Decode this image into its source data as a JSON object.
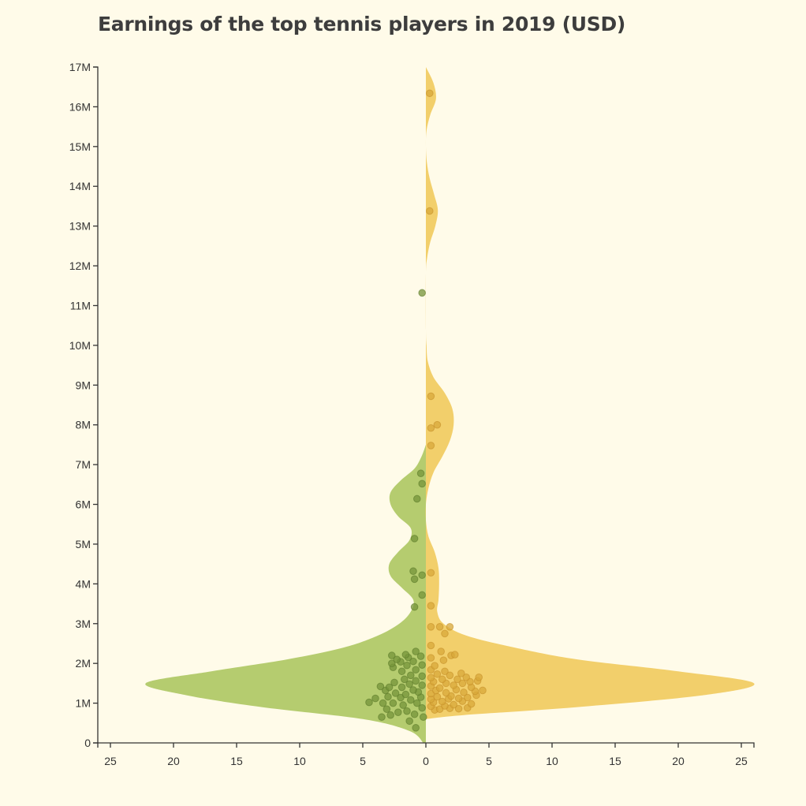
{
  "chart_data": {
    "type": "violin",
    "title": "Earnings of the top tennis players in 2019 (USD)",
    "xlabel": "",
    "ylabel": "",
    "ylim": [
      0,
      17000000
    ],
    "xlim": [
      -26,
      26
    ],
    "y_ticks": [
      0,
      1000000,
      2000000,
      3000000,
      4000000,
      5000000,
      6000000,
      7000000,
      8000000,
      9000000,
      10000000,
      11000000,
      12000000,
      13000000,
      14000000,
      15000000,
      16000000,
      17000000
    ],
    "y_tick_labels": [
      "0",
      "1M",
      "2M",
      "3M",
      "4M",
      "5M",
      "6M",
      "7M",
      "8M",
      "9M",
      "10M",
      "11M",
      "12M",
      "13M",
      "14M",
      "15M",
      "16M",
      "17M"
    ],
    "x_ticks": [
      -25,
      -20,
      -15,
      -10,
      -5,
      0,
      5,
      10,
      15,
      20,
      25
    ],
    "x_tick_labels": [
      "25",
      "20",
      "15",
      "10",
      "5",
      "0",
      "5",
      "10",
      "15",
      "20",
      "25"
    ],
    "grid": false,
    "legend": "none",
    "series": [
      {
        "side": "left",
        "color": "#b5cc6f",
        "dot_color": "#75943a",
        "density": [
          [
            0,
            0.2
          ],
          [
            300000,
            1.3
          ],
          [
            600000,
            5
          ],
          [
            900000,
            13
          ],
          [
            1200000,
            19
          ],
          [
            1500000,
            22.2
          ],
          [
            1800000,
            17
          ],
          [
            2100000,
            11
          ],
          [
            2400000,
            6.5
          ],
          [
            2700000,
            3.8
          ],
          [
            3000000,
            2.1
          ],
          [
            3300000,
            1.2
          ],
          [
            3600000,
            1.0
          ],
          [
            3900000,
            1.9
          ],
          [
            4200000,
            2.8
          ],
          [
            4500000,
            2.9
          ],
          [
            4800000,
            2.2
          ],
          [
            5100000,
            1.3
          ],
          [
            5400000,
            1.2
          ],
          [
            5700000,
            2.2
          ],
          [
            6000000,
            2.8
          ],
          [
            6300000,
            2.8
          ],
          [
            6600000,
            2.0
          ],
          [
            6900000,
            0.9
          ],
          [
            7200000,
            0.35
          ],
          [
            7500000,
            0
          ]
        ],
        "points": [
          [
            -0.8,
            380000
          ],
          [
            -1.3,
            550000
          ],
          [
            -0.2,
            650000
          ],
          [
            -2.8,
            700000
          ],
          [
            -3.5,
            650000
          ],
          [
            -0.9,
            720000
          ],
          [
            -1.5,
            800000
          ],
          [
            -2.2,
            770000
          ],
          [
            -3.1,
            850000
          ],
          [
            -0.3,
            880000
          ],
          [
            -1.8,
            950000
          ],
          [
            -2.6,
            1000000
          ],
          [
            -3.4,
            1000000
          ],
          [
            -4.5,
            1020000
          ],
          [
            -0.7,
            1000000
          ],
          [
            -1.2,
            1080000
          ],
          [
            -2.0,
            1140000
          ],
          [
            -3.0,
            1160000
          ],
          [
            -4.0,
            1120000
          ],
          [
            -0.4,
            1150000
          ],
          [
            -1.6,
            1220000
          ],
          [
            -2.4,
            1250000
          ],
          [
            -0.6,
            1280000
          ],
          [
            -3.2,
            1320000
          ],
          [
            -1.0,
            1330000
          ],
          [
            -2.9,
            1400000
          ],
          [
            -1.9,
            1400000
          ],
          [
            -3.6,
            1420000
          ],
          [
            -0.3,
            1450000
          ],
          [
            -1.3,
            1480000
          ],
          [
            -2.5,
            1520000
          ],
          [
            -0.8,
            1560000
          ],
          [
            -1.7,
            1600000
          ],
          [
            -0.3,
            1680000
          ],
          [
            -1.2,
            1700000
          ],
          [
            -1.9,
            1800000
          ],
          [
            -0.8,
            1840000
          ],
          [
            -2.6,
            1900000
          ],
          [
            -1.5,
            1950000
          ],
          [
            -0.3,
            1960000
          ],
          [
            -2.7,
            2000000
          ],
          [
            -2.0,
            2040000
          ],
          [
            -1.0,
            2050000
          ],
          [
            -2.3,
            2100000
          ],
          [
            -1.4,
            2150000
          ],
          [
            -0.4,
            2180000
          ],
          [
            -2.7,
            2200000
          ],
          [
            -1.6,
            2220000
          ],
          [
            -0.8,
            2300000
          ],
          [
            -0.9,
            3420000
          ],
          [
            -0.3,
            3720000
          ],
          [
            -0.9,
            4120000
          ],
          [
            -0.3,
            4220000
          ],
          [
            -1.0,
            4320000
          ],
          [
            -0.9,
            5140000
          ],
          [
            -0.7,
            6140000
          ],
          [
            -0.3,
            6520000
          ],
          [
            -0.4,
            6780000
          ],
          [
            -0.3,
            11320000
          ]
        ]
      },
      {
        "side": "right",
        "color": "#f2cf6b",
        "dot_color": "#d8a83a",
        "density": [
          [
            600000,
            0
          ],
          [
            700000,
            3
          ],
          [
            900000,
            12
          ],
          [
            1200000,
            22
          ],
          [
            1500000,
            26
          ],
          [
            1800000,
            20
          ],
          [
            2100000,
            12
          ],
          [
            2400000,
            7
          ],
          [
            2700000,
            3.2
          ],
          [
            3000000,
            1.4
          ],
          [
            3300000,
            0.9
          ],
          [
            3600000,
            1.0
          ],
          [
            4000000,
            1.05
          ],
          [
            4400000,
            1.0
          ],
          [
            4800000,
            0.7
          ],
          [
            5200000,
            0.2
          ],
          [
            5600000,
            0
          ],
          [
            6000000,
            0
          ],
          [
            6400000,
            0.2
          ],
          [
            6800000,
            0.6
          ],
          [
            7200000,
            1.3
          ],
          [
            7600000,
            1.9
          ],
          [
            8000000,
            2.2
          ],
          [
            8400000,
            2.1
          ],
          [
            8800000,
            1.5
          ],
          [
            9200000,
            0.6
          ],
          [
            9600000,
            0.15
          ],
          [
            10000000,
            0.05
          ],
          [
            10400000,
            0
          ],
          [
            11800000,
            0
          ],
          [
            12200000,
            0.1
          ],
          [
            12600000,
            0.35
          ],
          [
            13000000,
            0.75
          ],
          [
            13400000,
            0.95
          ],
          [
            13800000,
            0.65
          ],
          [
            14200000,
            0.3
          ],
          [
            14600000,
            0.08
          ],
          [
            15000000,
            0
          ],
          [
            15400000,
            0.05
          ],
          [
            15800000,
            0.35
          ],
          [
            16200000,
            0.8
          ],
          [
            16600000,
            0.6
          ],
          [
            17000000,
            0
          ]
        ],
        "points": [
          [
            0.7,
            830000
          ],
          [
            1.1,
            850000
          ],
          [
            1.9,
            870000
          ],
          [
            2.6,
            860000
          ],
          [
            3.3,
            880000
          ],
          [
            0.4,
            920000
          ],
          [
            1.5,
            930000
          ],
          [
            2.2,
            960000
          ],
          [
            3.6,
            980000
          ],
          [
            0.6,
            1020000
          ],
          [
            1.3,
            1040000
          ],
          [
            2.9,
            1050000
          ],
          [
            0.4,
            1100000
          ],
          [
            1.8,
            1110000
          ],
          [
            2.6,
            1120000
          ],
          [
            3.3,
            1140000
          ],
          [
            0.9,
            1160000
          ],
          [
            2.0,
            1180000
          ],
          [
            4.0,
            1200000
          ],
          [
            0.4,
            1240000
          ],
          [
            1.6,
            1260000
          ],
          [
            3.0,
            1270000
          ],
          [
            3.9,
            1300000
          ],
          [
            0.8,
            1320000
          ],
          [
            4.5,
            1320000
          ],
          [
            2.4,
            1340000
          ],
          [
            1.1,
            1380000
          ],
          [
            3.6,
            1400000
          ],
          [
            0.4,
            1430000
          ],
          [
            2.2,
            1450000
          ],
          [
            1.6,
            1500000
          ],
          [
            2.9,
            1500000
          ],
          [
            0.6,
            1540000
          ],
          [
            3.5,
            1540000
          ],
          [
            4.1,
            1560000
          ],
          [
            1.3,
            1600000
          ],
          [
            2.5,
            1600000
          ],
          [
            0.4,
            1640000
          ],
          [
            3.2,
            1650000
          ],
          [
            4.2,
            1650000
          ],
          [
            1.9,
            1700000
          ],
          [
            0.9,
            1730000
          ],
          [
            2.8,
            1750000
          ],
          [
            1.5,
            1800000
          ],
          [
            0.4,
            1840000
          ],
          [
            0.7,
            1940000
          ],
          [
            1.4,
            2080000
          ],
          [
            0.4,
            2140000
          ],
          [
            2.0,
            2200000
          ],
          [
            2.3,
            2220000
          ],
          [
            1.2,
            2300000
          ],
          [
            0.4,
            2450000
          ],
          [
            1.5,
            2750000
          ],
          [
            0.4,
            2920000
          ],
          [
            1.1,
            2920000
          ],
          [
            1.9,
            2920000
          ],
          [
            0.4,
            3450000
          ],
          [
            0.4,
            4280000
          ],
          [
            0.4,
            7480000
          ],
          [
            0.4,
            7920000
          ],
          [
            0.9,
            8000000
          ],
          [
            0.4,
            8720000
          ],
          [
            0.3,
            13380000
          ],
          [
            0.3,
            16340000
          ]
        ]
      }
    ]
  }
}
